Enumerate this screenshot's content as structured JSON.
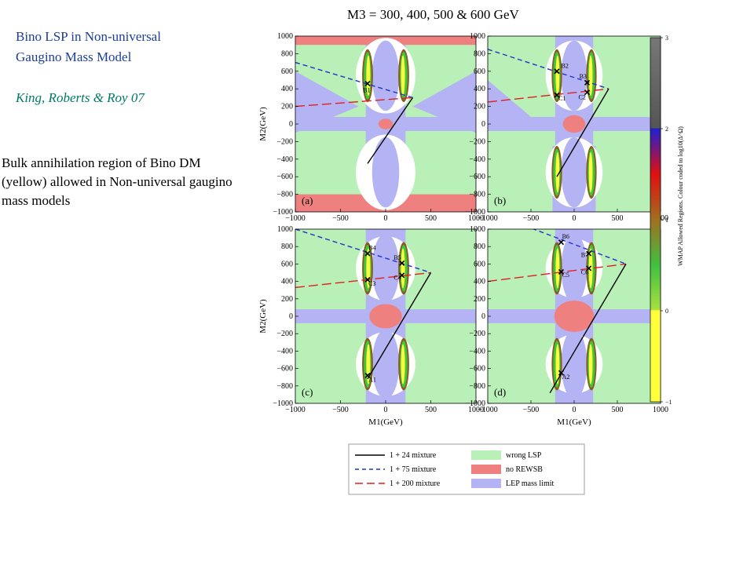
{
  "title": "M3 = 300, 400, 500 & 600 GeV",
  "heading": [
    "Bino LSP in Non-universal",
    "Gaugino Mass Model"
  ],
  "citation": "King, Roberts & Roy 07",
  "description": "Bulk annihilation region of Bino DM (yellow) allowed in Non-universal gaugino mass models",
  "colors": {
    "wrong_lsp": "#b8f0b8",
    "no_rewsb": "#ef8080",
    "lep_limit": "#b4b4f4",
    "yellow": "#ffff3c",
    "green": "#3cc83c",
    "brown": "#8a5a1e",
    "black_line": "#000000",
    "blue_dash": "#2233cc",
    "red_dash": "#e02020"
  },
  "chart_data": {
    "type": "scatter",
    "xlabel": "M1(GeV)",
    "ylabel": "M2(GeV)",
    "xlim": [
      -1000,
      1000
    ],
    "ylim": [
      -1000,
      1000
    ],
    "xticks": [
      -1000,
      -500,
      0,
      500,
      1000
    ],
    "yticks": [
      -1000,
      -800,
      -600,
      -400,
      -200,
      0,
      200,
      400,
      600,
      800,
      1000
    ],
    "panels": [
      {
        "label": "(a)",
        "m3": 300,
        "lines": {
          "black": [
            [
              -200,
              -450
            ],
            [
              300,
              300
            ]
          ],
          "blue": [
            [
              -1000,
              700
            ],
            [
              300,
              300
            ]
          ],
          "red": [
            [
              -1000,
              200
            ],
            [
              300,
              300
            ]
          ]
        },
        "points": [
          {
            "name": "B1",
            "x": -200,
            "y": 460,
            "lx": -250,
            "ly": 360
          }
        ]
      },
      {
        "label": "(b)",
        "m3": 400,
        "lines": {
          "black": [
            [
              -200,
              -600
            ],
            [
              400,
              400
            ]
          ],
          "blue": [
            [
              -1000,
              850
            ],
            [
              400,
              400
            ]
          ],
          "red": [
            [
              -1000,
              250
            ],
            [
              400,
              400
            ]
          ]
        },
        "points": [
          {
            "name": "B2",
            "x": -200,
            "y": 600,
            "lx": -150,
            "ly": 640
          },
          {
            "name": "B3",
            "x": 150,
            "y": 470,
            "lx": 60,
            "ly": 520
          },
          {
            "name": "C1",
            "x": -200,
            "y": 330,
            "lx": -180,
            "ly": 270
          },
          {
            "name": "C2",
            "x": 150,
            "y": 360,
            "lx": 50,
            "ly": 280
          }
        ]
      },
      {
        "label": "(c)",
        "m3": 500,
        "lines": {
          "black": [
            [
              -200,
              -720
            ],
            [
              500,
              500
            ]
          ],
          "blue": [
            [
              -1000,
              1000
            ],
            [
              500,
              500
            ]
          ],
          "red": [
            [
              -1000,
              330
            ],
            [
              500,
              500
            ]
          ]
        },
        "points": [
          {
            "name": "B4",
            "x": -200,
            "y": 720,
            "lx": -190,
            "ly": 760
          },
          {
            "name": "B5",
            "x": 180,
            "y": 610,
            "lx": 90,
            "ly": 650
          },
          {
            "name": "C3",
            "x": -200,
            "y": 420,
            "lx": -190,
            "ly": 350
          },
          {
            "name": "C4",
            "x": 180,
            "y": 470,
            "lx": 90,
            "ly": 420
          },
          {
            "name": "A1",
            "x": -200,
            "y": -680,
            "lx": -190,
            "ly": -750
          }
        ]
      },
      {
        "label": "(d)",
        "m3": 600,
        "lines": {
          "black": [
            [
              -280,
              -880
            ],
            [
              600,
              600
            ]
          ],
          "blue": [
            [
              -1000,
              1200
            ],
            [
              600,
              600
            ]
          ],
          "red": [
            [
              -1000,
              400
            ],
            [
              600,
              600
            ]
          ]
        },
        "points": [
          {
            "name": "B6",
            "x": -150,
            "y": 850,
            "lx": -140,
            "ly": 890
          },
          {
            "name": "B7",
            "x": 170,
            "y": 720,
            "lx": 80,
            "ly": 680
          },
          {
            "name": "C5",
            "x": -150,
            "y": 510,
            "lx": -140,
            "ly": 450
          },
          {
            "name": "C6",
            "x": 170,
            "y": 550,
            "lx": 80,
            "ly": 480
          },
          {
            "name": "A2",
            "x": -150,
            "y": -650,
            "lx": -140,
            "ly": -720
          }
        ]
      }
    ],
    "colorbar": {
      "label": "WMAP Allowed Regions. Colour coded to log10(Δ^Ω)",
      "ticks": [
        -1,
        0,
        1,
        2,
        3
      ],
      "stops": [
        {
          "v": -1,
          "c": "#ffff3c"
        },
        {
          "v": 0,
          "c": "#ffff3c"
        },
        {
          "v": 0.01,
          "c": "#a8e040"
        },
        {
          "v": 0.5,
          "c": "#40c040"
        },
        {
          "v": 1,
          "c": "#a07020"
        },
        {
          "v": 1.5,
          "c": "#e01010"
        },
        {
          "v": 2,
          "c": "#2020d0"
        },
        {
          "v": 2.01,
          "c": "#555555"
        },
        {
          "v": 3,
          "c": "#777777"
        }
      ]
    },
    "legend": [
      {
        "kind": "line",
        "style": "solid",
        "color": "#000000",
        "label": "1 + 24 mixture"
      },
      {
        "kind": "line",
        "style": "dash",
        "color": "#2233cc",
        "label": "1 + 75 mixture"
      },
      {
        "kind": "line",
        "style": "longdash",
        "color": "#e02020",
        "label": "1 + 200 mixture"
      },
      {
        "kind": "patch",
        "color": "#b8f0b8",
        "label": "wrong LSP"
      },
      {
        "kind": "patch",
        "color": "#ef8080",
        "label": "no REWSB"
      },
      {
        "kind": "patch",
        "color": "#b4b4f4",
        "label": "LEP mass limit"
      }
    ]
  }
}
